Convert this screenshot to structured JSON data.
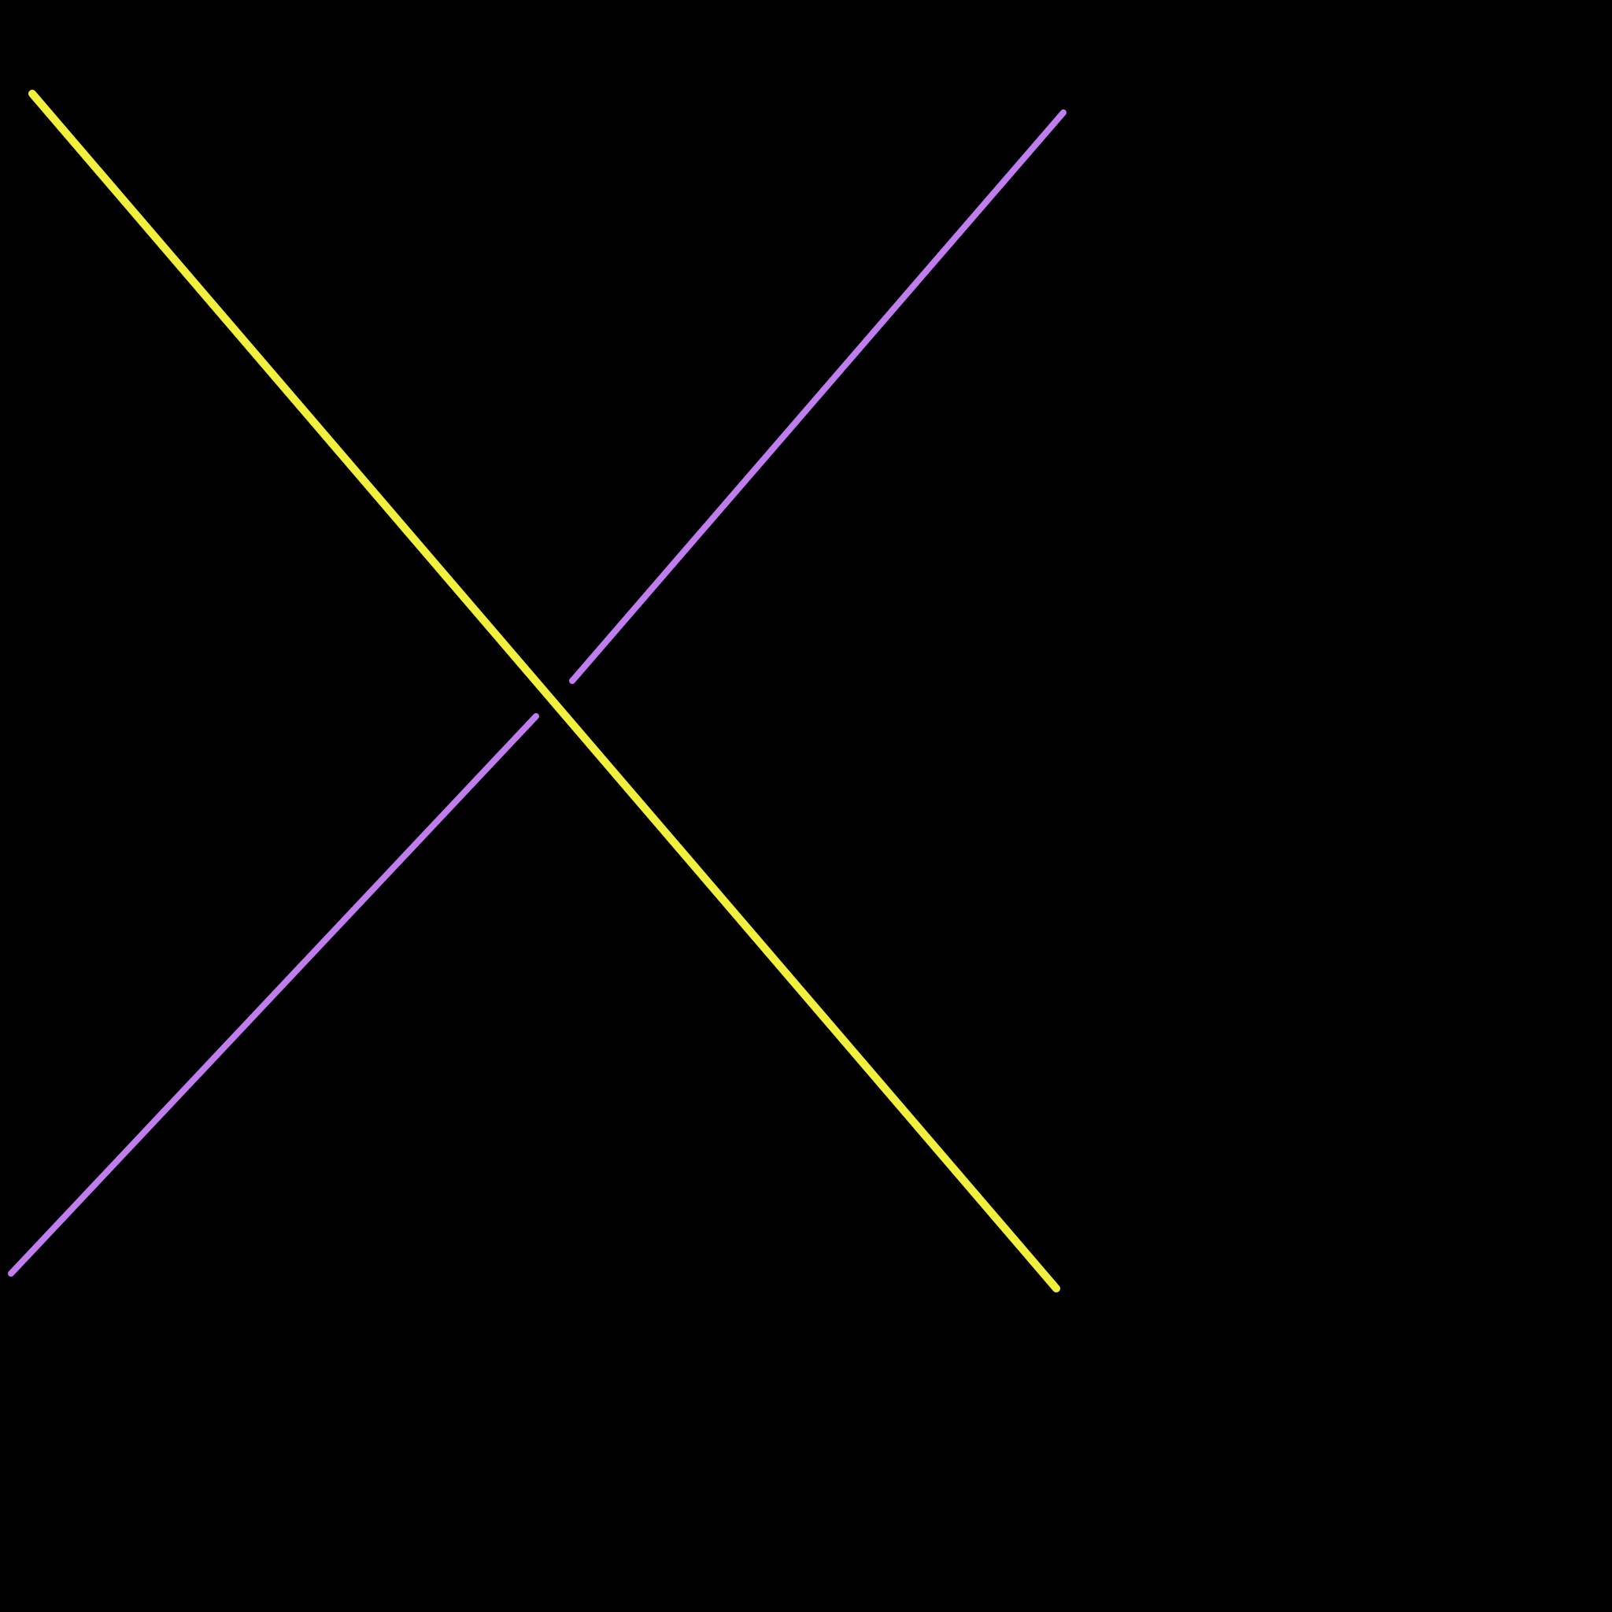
{
  "canvas": {
    "background": "#000000"
  },
  "strokes": [
    {
      "id": "yellow-diagonal",
      "color": "#f2ef3d",
      "description_name": "yellow-diagonal-line"
    },
    {
      "id": "purple-upper-segment",
      "color": "#c07df0",
      "description_name": "purple-upper-segment-line"
    },
    {
      "id": "purple-lower-segment",
      "color": "#c07df0",
      "description_name": "purple-lower-segment-line"
    }
  ]
}
